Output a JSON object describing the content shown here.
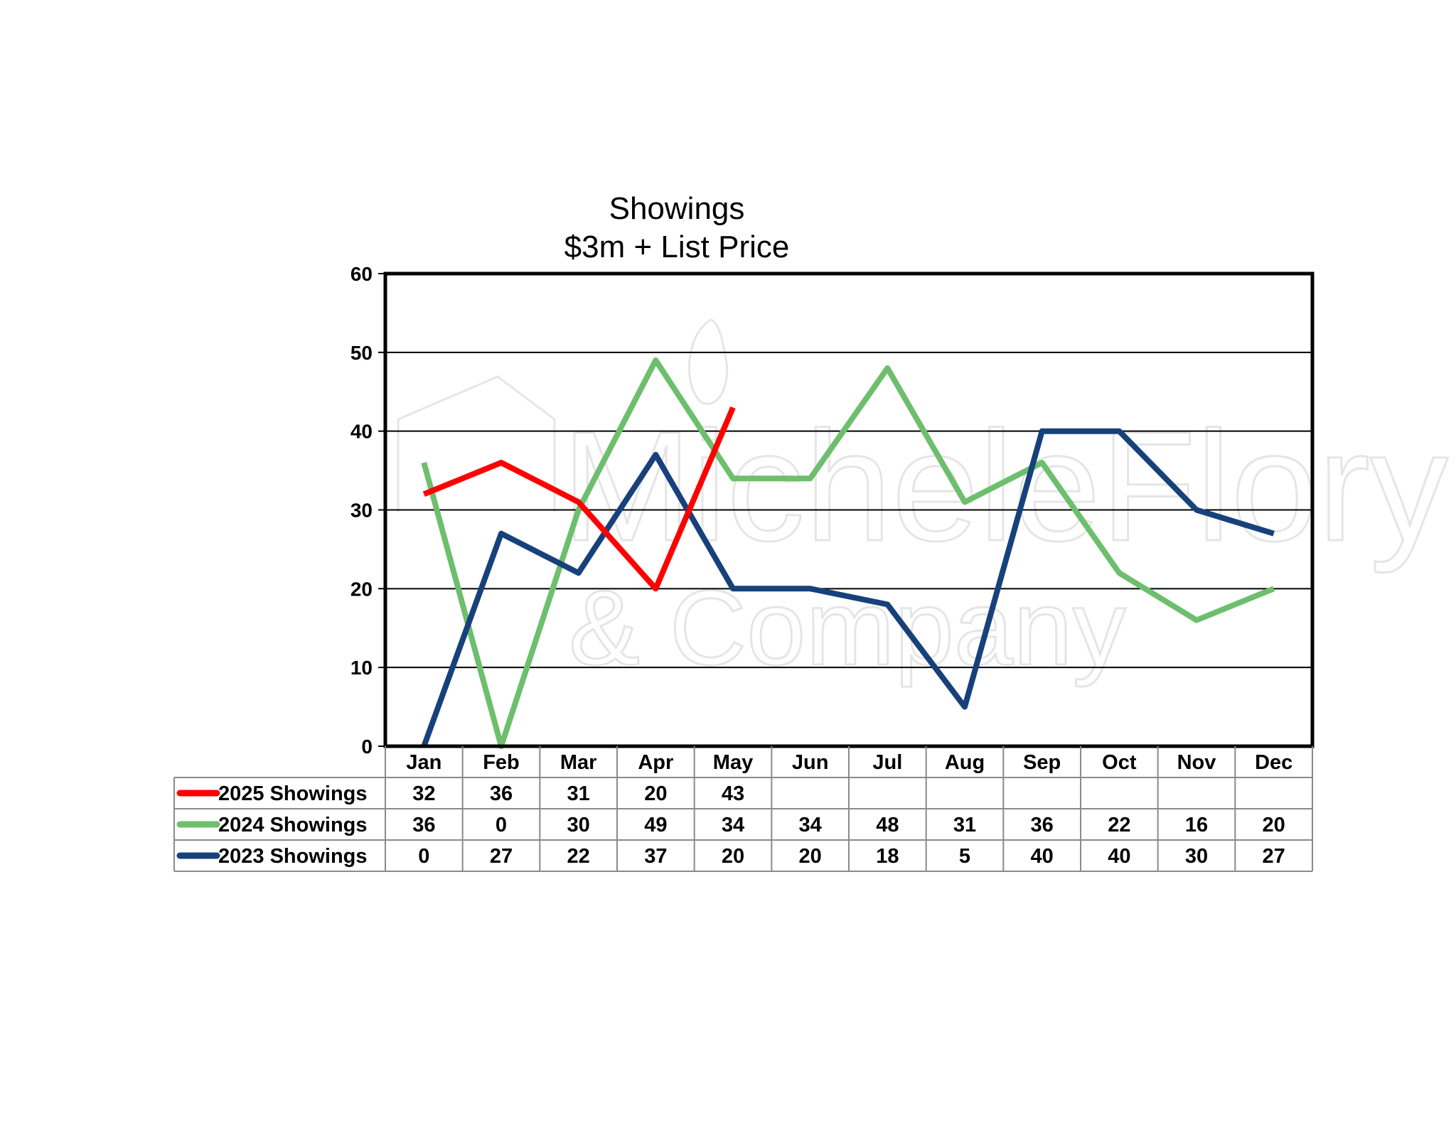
{
  "chart_data": {
    "type": "line",
    "title": [
      "Showings",
      "$3m + List Price"
    ],
    "categories": [
      "Jan",
      "Feb",
      "Mar",
      "Apr",
      "May",
      "Jun",
      "Jul",
      "Aug",
      "Sep",
      "Oct",
      "Nov",
      "Dec"
    ],
    "ylim": [
      0,
      60
    ],
    "yticks": [
      "0",
      "10",
      "20",
      "30",
      "40",
      "50",
      "60"
    ],
    "grid": true,
    "legend": "data-table-left",
    "watermark": [
      "MicheleFlory",
      "& Company"
    ],
    "series": [
      {
        "name": "2025 Showings",
        "color": "#ff0000",
        "values": [
          32,
          36,
          31,
          20,
          43,
          null,
          null,
          null,
          null,
          null,
          null,
          null
        ]
      },
      {
        "name": "2024 Showings",
        "color": "#6dbf6d",
        "values": [
          36,
          0,
          30,
          49,
          34,
          34,
          48,
          31,
          36,
          22,
          16,
          20
        ]
      },
      {
        "name": "2023 Showings",
        "color": "#17417a",
        "values": [
          0,
          27,
          22,
          37,
          20,
          20,
          18,
          5,
          40,
          40,
          30,
          27
        ]
      }
    ]
  }
}
